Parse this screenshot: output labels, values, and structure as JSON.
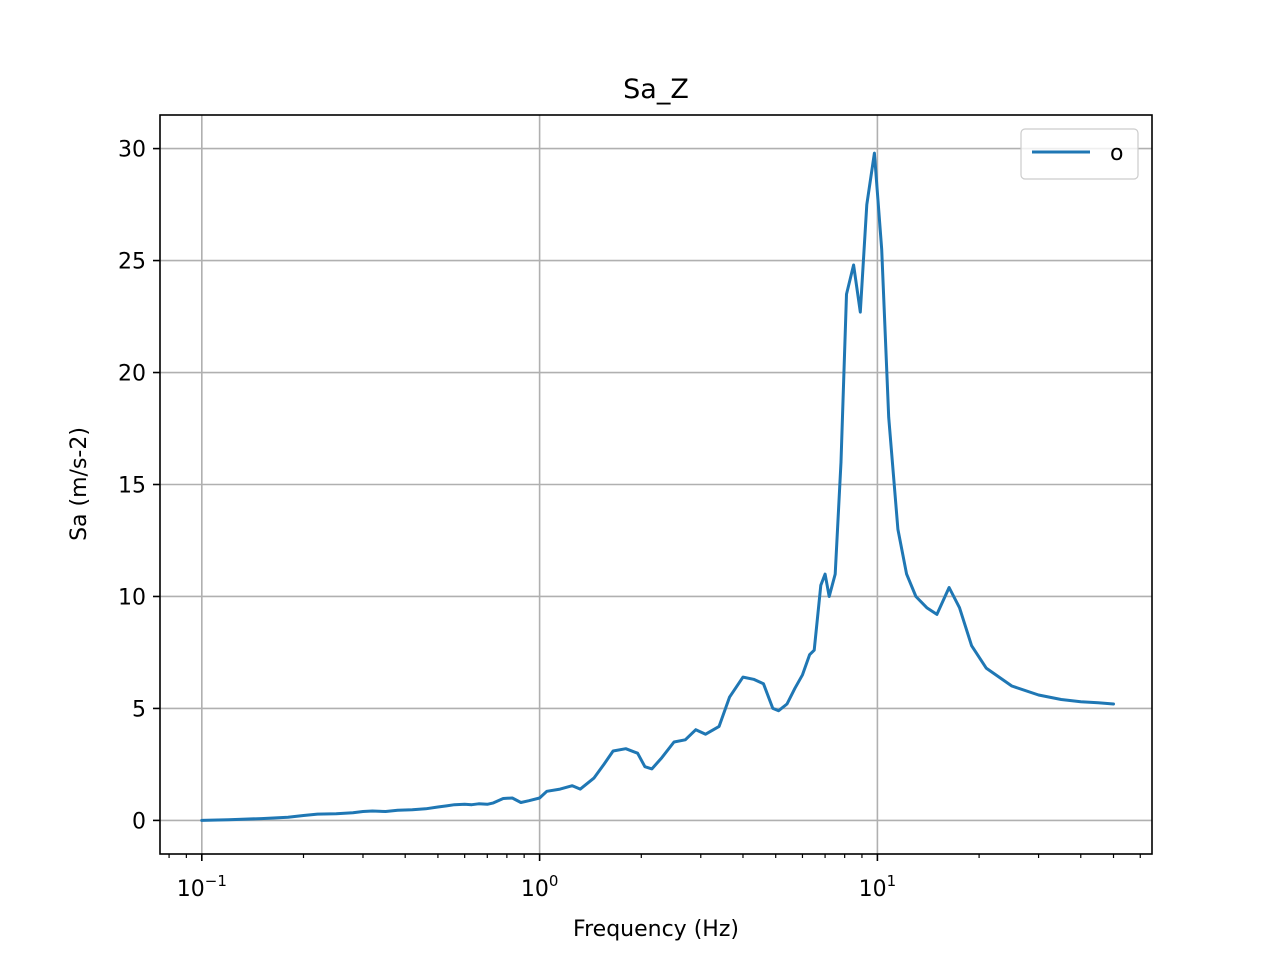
{
  "chart_data": {
    "type": "line",
    "title": "Sa_Z",
    "xlabel": "Frequency (Hz)",
    "ylabel": "Sa (m/s-2)",
    "x_scale": "log",
    "xlim": [
      0.0752,
      65
    ],
    "ylim": [
      -1.5,
      31.5
    ],
    "grid": true,
    "legend_position": "top-right",
    "x_ticks": [
      {
        "value": 0.1,
        "base": "10",
        "exp": "−1"
      },
      {
        "value": 1,
        "base": "10",
        "exp": "0"
      },
      {
        "value": 10,
        "base": "10",
        "exp": "1"
      }
    ],
    "y_ticks": [
      0,
      5,
      10,
      15,
      20,
      25,
      30
    ],
    "series": [
      {
        "name": "o",
        "color": "#1f77b4",
        "x": [
          0.1,
          0.12,
          0.15,
          0.18,
          0.2,
          0.22,
          0.25,
          0.28,
          0.3,
          0.32,
          0.35,
          0.38,
          0.42,
          0.46,
          0.5,
          0.53,
          0.56,
          0.6,
          0.63,
          0.66,
          0.7,
          0.73,
          0.78,
          0.83,
          0.88,
          0.93,
          1.0,
          1.05,
          1.15,
          1.25,
          1.32,
          1.45,
          1.55,
          1.65,
          1.8,
          1.95,
          2.05,
          2.15,
          2.3,
          2.5,
          2.7,
          2.9,
          3.1,
          3.4,
          3.65,
          4.0,
          4.3,
          4.6,
          4.9,
          5.1,
          5.4,
          5.7,
          6.0,
          6.3,
          6.5,
          6.8,
          7.0,
          7.2,
          7.5,
          7.8,
          8.1,
          8.5,
          8.9,
          9.3,
          9.8,
          10.3,
          10.8,
          11.5,
          12.2,
          13.0,
          14.0,
          15.0,
          16.3,
          17.5,
          19.0,
          21.0,
          25.0,
          30.0,
          35.0,
          40.0,
          45.0,
          50.0
        ],
        "y": [
          0.0,
          0.03,
          0.08,
          0.14,
          0.22,
          0.28,
          0.3,
          0.34,
          0.4,
          0.42,
          0.4,
          0.45,
          0.48,
          0.52,
          0.6,
          0.65,
          0.7,
          0.72,
          0.7,
          0.74,
          0.72,
          0.78,
          0.98,
          1.0,
          0.8,
          0.88,
          1.0,
          1.3,
          1.4,
          1.55,
          1.4,
          1.9,
          2.5,
          3.1,
          3.2,
          3.0,
          2.4,
          2.3,
          2.8,
          3.5,
          3.6,
          4.05,
          3.85,
          4.2,
          5.5,
          6.4,
          6.3,
          6.1,
          5.0,
          4.9,
          5.2,
          5.9,
          6.5,
          7.4,
          7.6,
          10.5,
          11.0,
          10.0,
          11.0,
          16.0,
          23.5,
          24.8,
          22.7,
          27.5,
          29.8,
          25.5,
          18.0,
          13.0,
          11.0,
          10.0,
          9.5,
          9.2,
          10.4,
          9.5,
          7.8,
          6.8,
          6.0,
          5.6,
          5.4,
          5.3,
          5.25,
          5.2
        ]
      }
    ]
  }
}
